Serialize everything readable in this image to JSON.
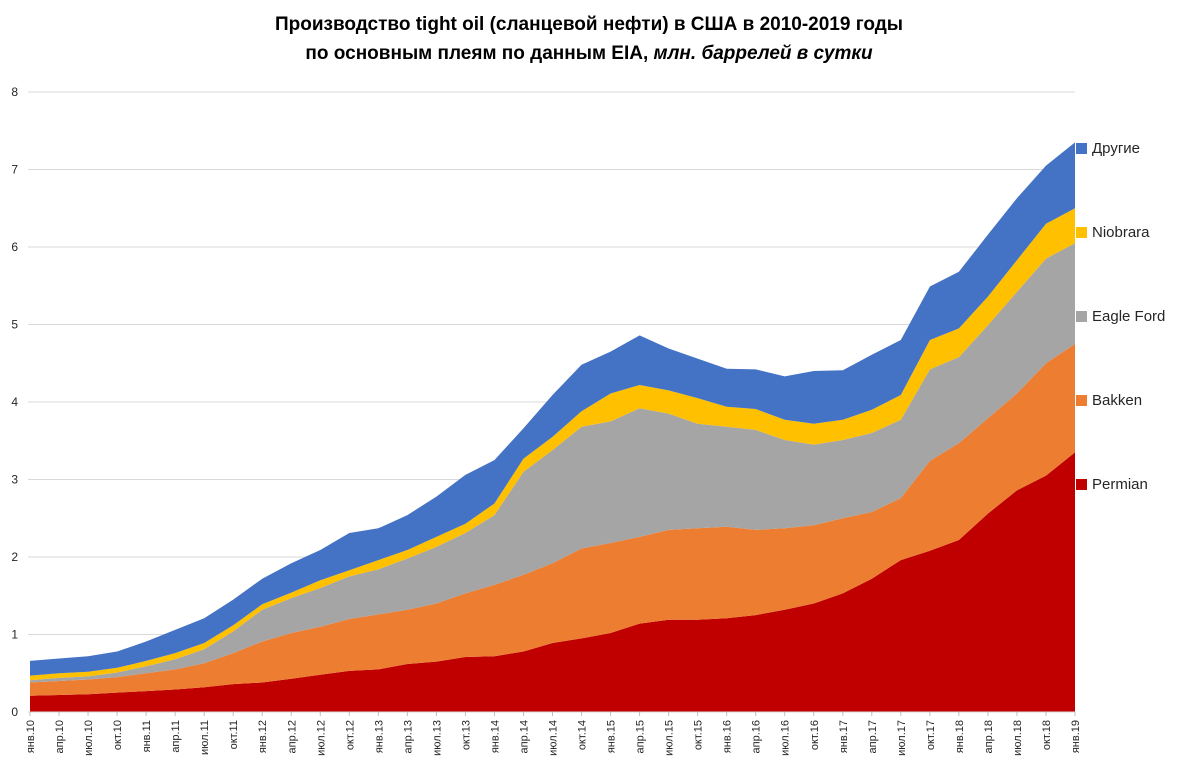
{
  "title": {
    "line1": "Производство tight oil (сланцевой нефти) в США в 2010-2019 годы",
    "line2_bold": "по основным плеям по данным EIA, ",
    "line2_italic": "млн. баррелей в сутки"
  },
  "colors": {
    "permian": "#C00000",
    "bakken": "#ED7D31",
    "eagle_ford": "#A5A5A5",
    "niobrara": "#FFC000",
    "other": "#4472C4",
    "gridline": "#D9D9D9",
    "tick": "#BFBFBF",
    "axis_text": "#262626"
  },
  "chart_data": {
    "type": "area",
    "stacked": true,
    "title": "Производство tight oil (сланцевой нефти) в США в 2010-2019 годы по основным плеям по данным EIA, млн. баррелей в сутки",
    "xlabel": "",
    "ylabel": "млн. баррелей в сутки",
    "ylim": [
      0,
      8
    ],
    "yticks": [
      "0",
      "1",
      "2",
      "3",
      "4",
      "5",
      "6",
      "7",
      "8"
    ],
    "grid": true,
    "legend_position": "right",
    "x": [
      "янв.10",
      "апр.10",
      "июл.10",
      "окт.10",
      "янв.11",
      "апр.11",
      "июл.11",
      "окт.11",
      "янв.12",
      "апр.12",
      "июл.12",
      "окт.12",
      "янв.13",
      "апр.13",
      "июл.13",
      "окт.13",
      "янв.14",
      "апр.14",
      "июл.14",
      "окт.14",
      "янв.15",
      "апр.15",
      "июл.15",
      "окт.15",
      "янв.16",
      "апр.16",
      "июл.16",
      "окт.16",
      "янв.17",
      "апр.17",
      "июл.17",
      "окт.17",
      "янв.18",
      "апр.18",
      "июл.18",
      "окт.18",
      "янв.19"
    ],
    "series": [
      {
        "name": "Permian",
        "color": "#C00000",
        "values": [
          0.21,
          0.22,
          0.23,
          0.25,
          0.27,
          0.29,
          0.32,
          0.36,
          0.38,
          0.43,
          0.48,
          0.53,
          0.55,
          0.62,
          0.65,
          0.71,
          0.72,
          0.78,
          0.89,
          0.95,
          1.02,
          1.14,
          1.19,
          1.19,
          1.21,
          1.25,
          1.32,
          1.4,
          1.53,
          1.72,
          1.96,
          2.08,
          2.22,
          2.56,
          2.86,
          3.05,
          3.35
        ]
      },
      {
        "name": "Bakken",
        "color": "#ED7D31",
        "values": [
          0.17,
          0.18,
          0.19,
          0.2,
          0.23,
          0.26,
          0.31,
          0.4,
          0.53,
          0.59,
          0.62,
          0.67,
          0.71,
          0.7,
          0.75,
          0.82,
          0.92,
          0.99,
          1.03,
          1.16,
          1.16,
          1.12,
          1.16,
          1.18,
          1.18,
          1.1,
          1.05,
          1.01,
          0.97,
          0.86,
          0.8,
          1.16,
          1.25,
          1.23,
          1.25,
          1.45,
          1.4
        ]
      },
      {
        "name": "Eagle Ford",
        "color": "#A5A5A5",
        "values": [
          0.03,
          0.04,
          0.04,
          0.06,
          0.09,
          0.13,
          0.18,
          0.28,
          0.41,
          0.45,
          0.5,
          0.55,
          0.58,
          0.66,
          0.73,
          0.78,
          0.9,
          1.33,
          1.46,
          1.57,
          1.57,
          1.66,
          1.5,
          1.35,
          1.29,
          1.29,
          1.14,
          1.04,
          1.01,
          1.02,
          1.01,
          1.18,
          1.11,
          1.2,
          1.31,
          1.35,
          1.3
        ]
      },
      {
        "name": "Niobrara",
        "color": "#FFC000",
        "values": [
          0.06,
          0.06,
          0.06,
          0.06,
          0.07,
          0.08,
          0.08,
          0.08,
          0.07,
          0.07,
          0.1,
          0.08,
          0.12,
          0.11,
          0.13,
          0.12,
          0.15,
          0.17,
          0.17,
          0.2,
          0.36,
          0.3,
          0.3,
          0.33,
          0.26,
          0.27,
          0.26,
          0.27,
          0.26,
          0.3,
          0.32,
          0.38,
          0.37,
          0.37,
          0.41,
          0.45,
          0.45
        ]
      },
      {
        "name": "Другие",
        "color": "#4472C4",
        "values": [
          0.19,
          0.19,
          0.2,
          0.21,
          0.25,
          0.3,
          0.32,
          0.33,
          0.33,
          0.38,
          0.39,
          0.48,
          0.41,
          0.45,
          0.52,
          0.63,
          0.56,
          0.39,
          0.54,
          0.6,
          0.54,
          0.64,
          0.54,
          0.51,
          0.49,
          0.51,
          0.56,
          0.68,
          0.64,
          0.71,
          0.71,
          0.69,
          0.73,
          0.8,
          0.8,
          0.75,
          0.85
        ]
      }
    ]
  },
  "legend": {
    "items": [
      {
        "label": "Другие",
        "color": "#4472C4"
      },
      {
        "label": "Niobrara",
        "color": "#FFC000"
      },
      {
        "label": "Eagle Ford",
        "color": "#A5A5A5"
      },
      {
        "label": "Bakken",
        "color": "#ED7D31"
      },
      {
        "label": "Permian",
        "color": "#C00000"
      }
    ]
  }
}
